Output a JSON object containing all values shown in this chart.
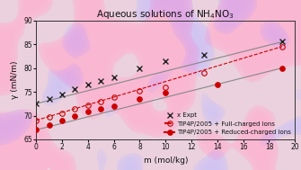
{
  "title": "Aqueous solutions of NH$_4$NO$_3$",
  "xlabel": "m (mol/kg)",
  "ylabel": "γ (mN/m)",
  "xlim": [
    0,
    20
  ],
  "ylim": [
    65,
    90
  ],
  "yticks": [
    65,
    70,
    75,
    80,
    85,
    90
  ],
  "xticks": [
    0,
    2,
    4,
    6,
    8,
    10,
    12,
    14,
    16,
    18,
    20
  ],
  "expt_x": [
    0,
    1,
    2,
    3,
    4,
    5,
    6,
    8,
    10,
    13,
    19
  ],
  "expt_y": [
    72.5,
    73.5,
    74.5,
    75.5,
    76.5,
    77.3,
    78.0,
    80.0,
    81.5,
    82.8,
    85.5
  ],
  "full_x": [
    0,
    1,
    2,
    3,
    4,
    5,
    6,
    8,
    10,
    13,
    19
  ],
  "full_y": [
    69.0,
    69.8,
    70.5,
    71.5,
    72.2,
    73.0,
    73.8,
    75.2,
    76.0,
    79.0,
    84.5
  ],
  "reduced_x": [
    0,
    1,
    2,
    3,
    4,
    5,
    6,
    8,
    10,
    14,
    19
  ],
  "reduced_y": [
    67.0,
    68.0,
    69.0,
    70.0,
    70.8,
    71.5,
    72.0,
    73.5,
    74.8,
    76.5,
    80.0
  ],
  "expt_line_x": [
    0,
    19
  ],
  "expt_line_y": [
    72.5,
    85.5
  ],
  "full_line_x": [
    0,
    19
  ],
  "full_line_y": [
    69.0,
    84.5
  ],
  "reduced_line_x": [
    0,
    19
  ],
  "reduced_line_y": [
    67.0,
    80.0
  ],
  "expt_color": "#222222",
  "full_color": "#cc0000",
  "reduced_color": "#cc0000",
  "line_color_expt": "#888888",
  "line_color_full": "#cc0000",
  "line_color_reduced": "#888888",
  "legend_x_expt": "x Expt",
  "legend_full": "TIP4P/2005 + Full-charged ions",
  "legend_reduced": "TIP4P/2005 + Reduced-charged ions",
  "title_fontsize": 7.5,
  "label_fontsize": 6.5,
  "tick_fontsize": 5.5,
  "legend_fontsize": 5.0
}
